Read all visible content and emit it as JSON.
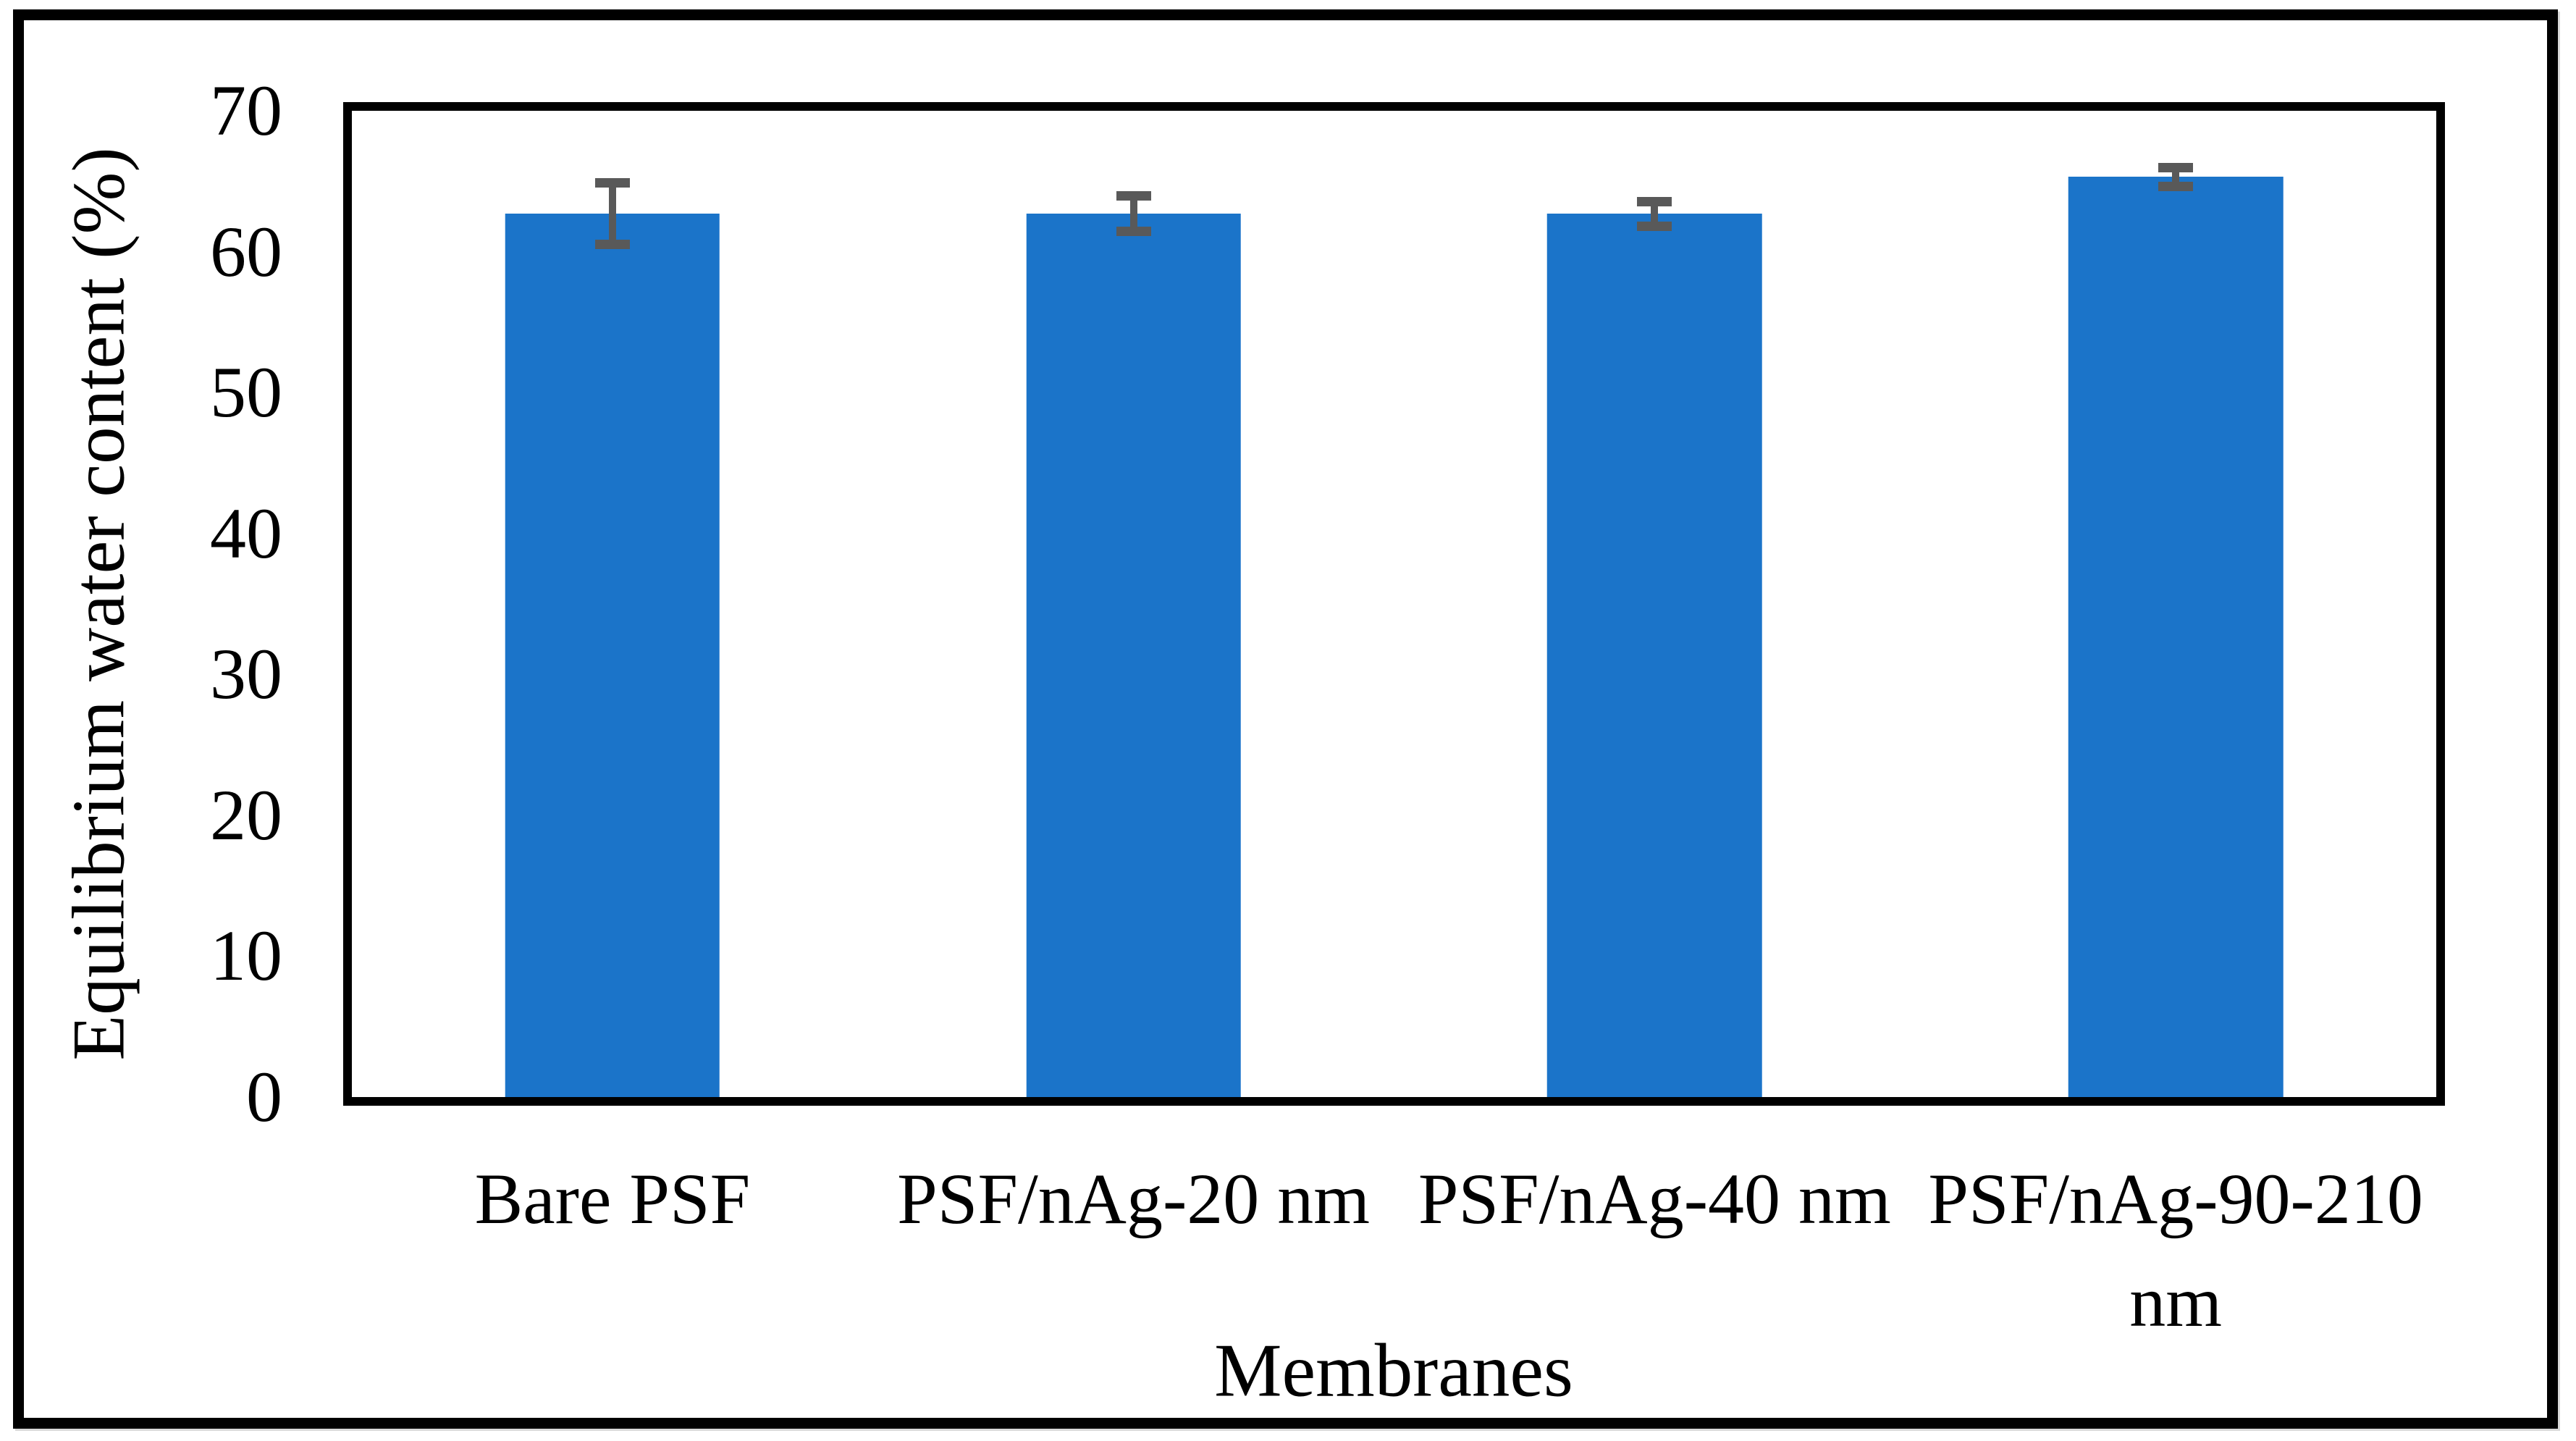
{
  "figure": {
    "background_color": "#ffffff",
    "border_color": "#000000"
  },
  "chart_data": {
    "type": "bar",
    "title": "",
    "xlabel": "Membranes",
    "ylabel": "Equilibrium water content (%)",
    "categories": [
      "Bare PSF",
      "PSF/nAg-20 nm",
      "PSF/nAg-40 nm",
      "PSF/nAg-90-210 nm"
    ],
    "values": [
      62.7,
      62.7,
      62.7,
      65.3
    ],
    "error_bars": [
      2.2,
      1.3,
      0.9,
      0.7
    ],
    "ylim": [
      0,
      70
    ],
    "yticks": [
      0,
      10,
      20,
      30,
      40,
      50,
      60,
      70
    ],
    "grid": false,
    "legend": "none",
    "bar_color": "#1b74c9",
    "error_bar_color": "#595959",
    "axis_color": "#000000"
  }
}
